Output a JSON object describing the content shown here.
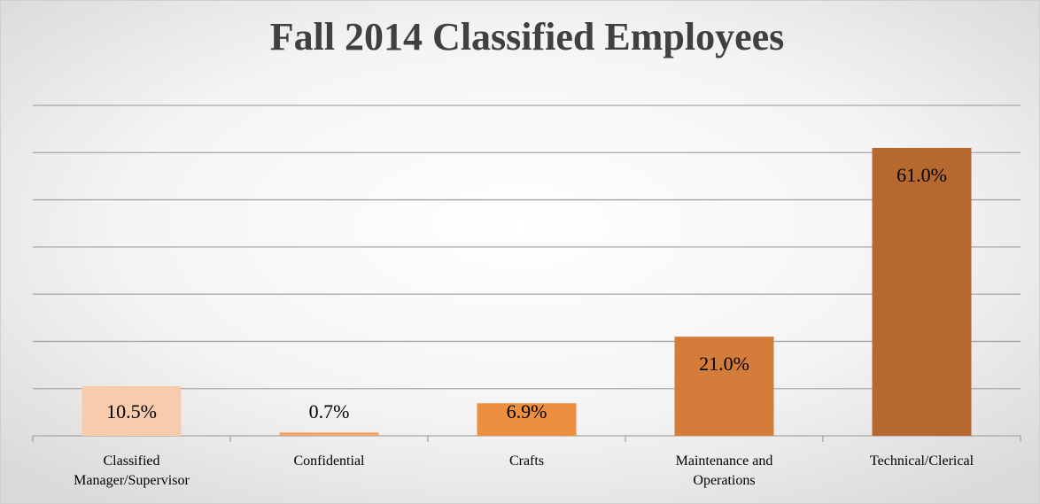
{
  "chart_data": {
    "type": "bar",
    "title": "Fall 2014 Classified Employees",
    "categories": [
      "Classified Manager/Supervisor",
      "Confidential",
      "Crafts",
      "Maintenance and Operations",
      "Technical/Clerical"
    ],
    "values": [
      10.5,
      0.7,
      6.9,
      21.0,
      61.0
    ],
    "value_labels": [
      "10.5%",
      "0.7%",
      "6.9%",
      "21.0%",
      "61.0%"
    ],
    "colors": [
      "#f8cbad",
      "#f0a468",
      "#ec8f3f",
      "#d47c39",
      "#b5692f"
    ],
    "ylim": [
      0,
      70
    ],
    "yticks": [
      0,
      10,
      20,
      30,
      40,
      50,
      60,
      70
    ],
    "grid": true
  }
}
